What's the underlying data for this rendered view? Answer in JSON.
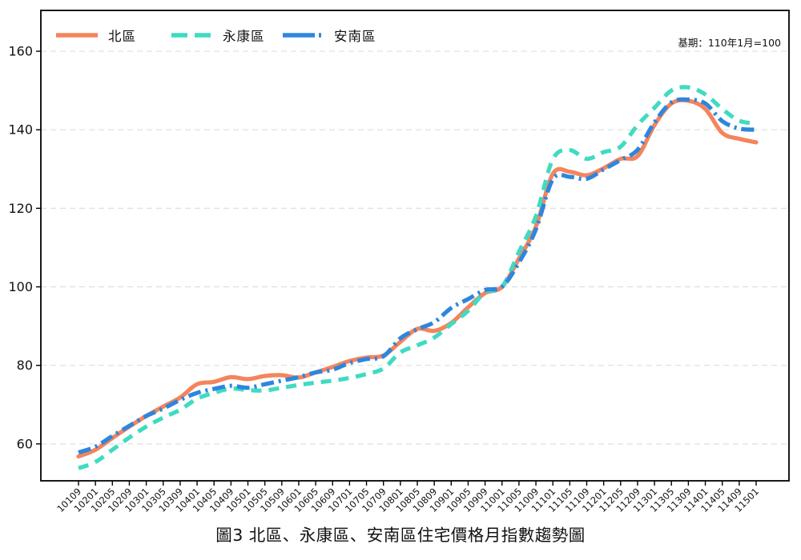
{
  "chart_data": {
    "type": "line",
    "title": "圖3 北區、永康區、安南區住宅價格月指數趨勢圖",
    "note": "基期：110年1月=100",
    "categories": [
      "10109",
      "10201",
      "10205",
      "10209",
      "10301",
      "10305",
      "10309",
      "10401",
      "10405",
      "10409",
      "10501",
      "10505",
      "10509",
      "10601",
      "10605",
      "10609",
      "10701",
      "10705",
      "10709",
      "10801",
      "10805",
      "10809",
      "10901",
      "10905",
      "10909",
      "11001",
      "11005",
      "11009",
      "11101",
      "11105",
      "11109",
      "11201",
      "11205",
      "11209",
      "11301",
      "11305",
      "11309",
      "11401",
      "11405",
      "11409",
      "11501"
    ],
    "series": [
      {
        "name": "北區",
        "color": "#F5845C",
        "line_style": "solid",
        "values": [
          56.8,
          58.5,
          61.5,
          64.4,
          67.1,
          69.5,
          71.8,
          75.2,
          75.8,
          77.0,
          76.5,
          77.3,
          77.5,
          76.9,
          78.2,
          79.6,
          81.1,
          82.0,
          82.5,
          86.0,
          89.3,
          88.8,
          90.8,
          94.8,
          98.4,
          100.0,
          107.2,
          115.3,
          128.8,
          129.3,
          128.4,
          130.2,
          132.6,
          133.3,
          141.2,
          146.7,
          147.4,
          145.3,
          139.2,
          137.7,
          136.8
        ]
      },
      {
        "name": "永康區",
        "color": "#3FDBC2",
        "line_style": "dashed",
        "values": [
          53.8,
          55.4,
          58.5,
          61.6,
          64.4,
          66.7,
          68.7,
          71.5,
          73.0,
          74.1,
          73.7,
          73.6,
          74.3,
          75.0,
          75.6,
          76.1,
          76.8,
          77.8,
          79.2,
          83.3,
          85.1,
          87.1,
          90.5,
          93.9,
          98.6,
          100.0,
          108.9,
          118.0,
          132.5,
          134.8,
          132.6,
          134.3,
          135.7,
          141.2,
          145.6,
          150.0,
          150.8,
          149.0,
          145.3,
          142.3,
          141.6
        ]
      },
      {
        "name": "安南區",
        "color": "#2E86DE",
        "line_style": "dashdot",
        "values": [
          57.8,
          59.3,
          62.0,
          64.6,
          67.1,
          69.0,
          71.2,
          73.0,
          74.0,
          74.8,
          74.3,
          75.2,
          76.1,
          77.0,
          78.2,
          78.9,
          80.6,
          81.6,
          82.3,
          86.9,
          89.2,
          91.0,
          94.6,
          96.9,
          99.2,
          100.0,
          106.2,
          114.6,
          127.4,
          128.0,
          127.5,
          129.9,
          132.3,
          134.9,
          141.9,
          147.0,
          147.7,
          146.7,
          142.2,
          140.3,
          140.0
        ]
      }
    ],
    "y_ticks": [
      60,
      80,
      100,
      120,
      140,
      160
    ],
    "ylim": [
      50.6,
      170.4
    ],
    "grid": "horizontal dashed",
    "legend_position": "top-left inside plot",
    "colors": {
      "grid_line": "#d9e0e3",
      "axis_frame": "#000000",
      "tick_text": "#111111"
    }
  }
}
